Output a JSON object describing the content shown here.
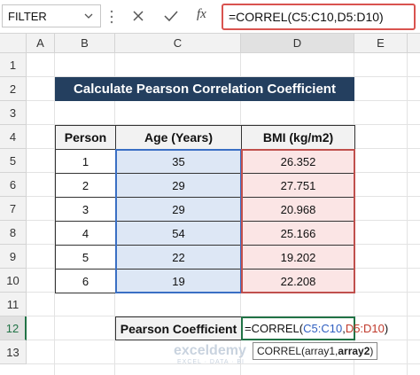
{
  "name_box": "FILTER",
  "formula_bar": {
    "fx": "fx",
    "formula": "=CORREL(C5:C10,D5:D10)"
  },
  "columns": [
    "A",
    "B",
    "C",
    "D",
    "E"
  ],
  "rows": [
    "1",
    "2",
    "3",
    "4",
    "5",
    "6",
    "7",
    "8",
    "9",
    "10",
    "11",
    "12",
    "13"
  ],
  "title": "Calculate Pearson Correlation Coefficient",
  "table": {
    "headers": [
      "Person",
      "Age (Years)",
      "BMI (kg/m2)"
    ],
    "rows": [
      [
        "1",
        "35",
        "26.352"
      ],
      [
        "2",
        "29",
        "27.751"
      ],
      [
        "3",
        "29",
        "20.968"
      ],
      [
        "4",
        "54",
        "25.166"
      ],
      [
        "5",
        "22",
        "19.202"
      ],
      [
        "6",
        "19",
        "22.208"
      ]
    ]
  },
  "result": {
    "label": "Pearson Coefficient",
    "formula_parts": [
      "=CORREL(",
      "C5:C10",
      ",",
      "D5:D10",
      ")"
    ]
  },
  "tooltip": {
    "parts": [
      "CORREL(array1, ",
      "array2",
      ")"
    ]
  },
  "watermark": {
    "brand": "exceldemy",
    "tagline": "EXCEL · DATA · BI"
  }
}
